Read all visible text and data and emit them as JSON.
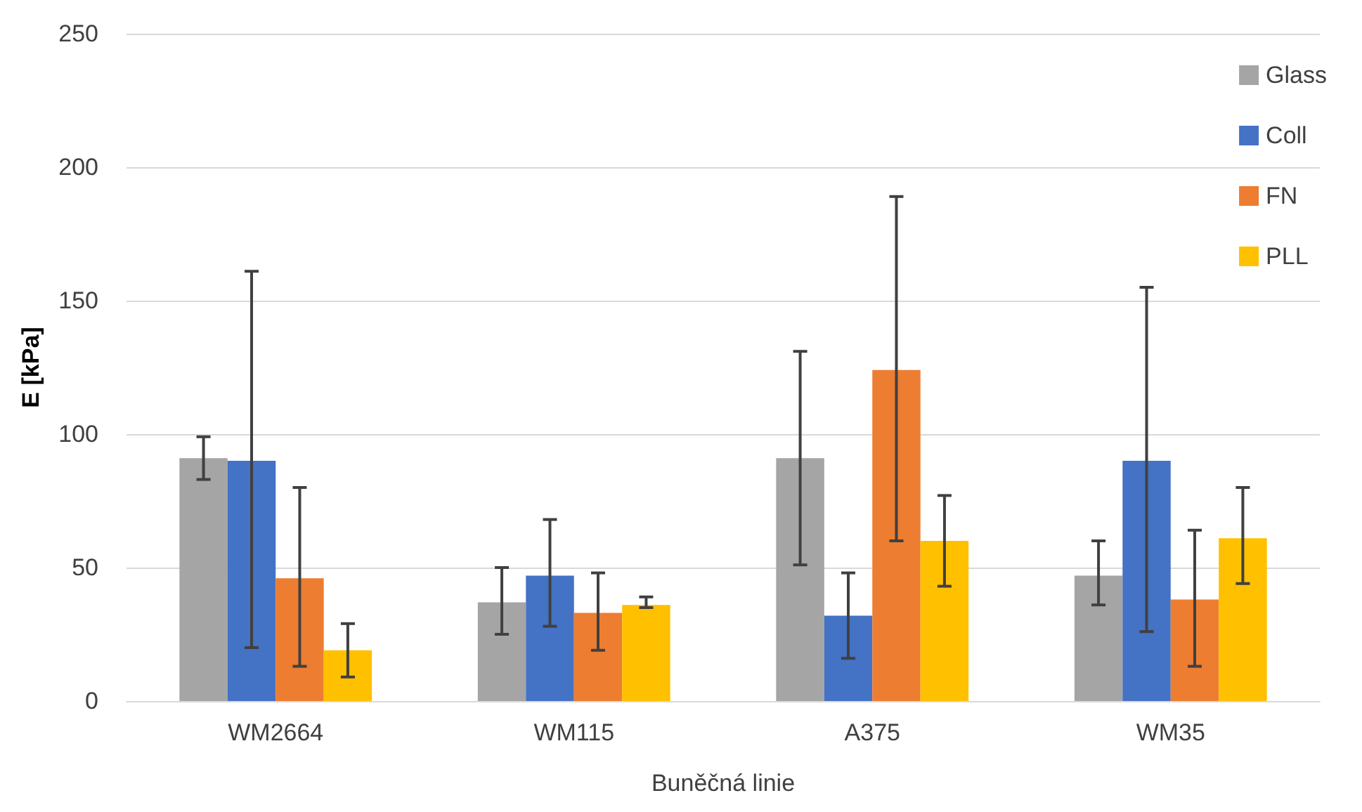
{
  "chart_data": {
    "type": "bar",
    "xlabel": "Buněčná linie",
    "ylabel": "E [kPa]",
    "categories": [
      "WM2664",
      "WM115",
      "A375",
      "WM35"
    ],
    "series": [
      {
        "name": "Glass",
        "color": "#a5a5a5",
        "values": [
          91,
          37,
          91,
          47
        ],
        "errors": [
          [
            83,
            99
          ],
          [
            25,
            50
          ],
          [
            51,
            131
          ],
          [
            36,
            60
          ]
        ]
      },
      {
        "name": "Coll",
        "color": "#4472c4",
        "values": [
          90,
          47,
          32,
          90
        ],
        "errors": [
          [
            20,
            161
          ],
          [
            28,
            68
          ],
          [
            16,
            48
          ],
          [
            26,
            155
          ]
        ]
      },
      {
        "name": "FN",
        "color": "#ed7d31",
        "values": [
          46,
          33,
          124,
          38
        ],
        "errors": [
          [
            13,
            80
          ],
          [
            19,
            48
          ],
          [
            60,
            189
          ],
          [
            13,
            64
          ]
        ]
      },
      {
        "name": "PLL",
        "color": "#ffc000",
        "values": [
          19,
          36,
          60,
          61
        ],
        "errors": [
          [
            9,
            29
          ],
          [
            35,
            39
          ],
          [
            43,
            77
          ],
          [
            44,
            80
          ]
        ]
      }
    ],
    "ylim": [
      0,
      250
    ],
    "yticks": [
      0,
      50,
      100,
      150,
      200,
      250
    ],
    "grid": "y",
    "legend": "top right"
  }
}
